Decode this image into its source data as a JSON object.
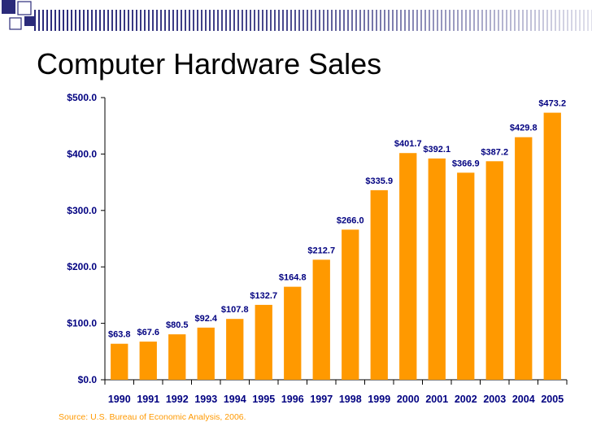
{
  "page": {
    "title": "Computer Hardware Sales",
    "source": "Source: U.S. Bureau of Economic Analysis, 2006."
  },
  "theme": {
    "bar_color": "#ff9900",
    "text_color": "#000080",
    "source_color": "#ff9900",
    "deco_color": "#2b2b7a"
  },
  "chart_data": {
    "type": "bar",
    "title": "",
    "xlabel": "",
    "ylabel": "",
    "categories": [
      "1990",
      "1991",
      "1992",
      "1993",
      "1994",
      "1995",
      "1996",
      "1997",
      "1998",
      "1999",
      "2000",
      "2001",
      "2002",
      "2003",
      "2004",
      "2005"
    ],
    "values": [
      63.8,
      67.6,
      80.5,
      92.4,
      107.8,
      132.7,
      164.8,
      212.7,
      266.0,
      335.9,
      401.7,
      392.1,
      366.9,
      387.2,
      429.8,
      473.2
    ],
    "value_labels": [
      "$63.8",
      "$67.6",
      "$80.5",
      "$92.4",
      "$107.8",
      "$132.7",
      "$164.8",
      "$212.7",
      "$266.0",
      "$335.9",
      "$401.7",
      "$392.1",
      "$366.9",
      "$387.2",
      "$429.8",
      "$473.2"
    ],
    "yticks": [
      0,
      100,
      200,
      300,
      400,
      500
    ],
    "ytick_labels": [
      "$0.0",
      "$100.0",
      "$200.0",
      "$300.0",
      "$400.0",
      "$500.0"
    ],
    "ylim": [
      0,
      500
    ],
    "grid": false,
    "legend": "none"
  }
}
